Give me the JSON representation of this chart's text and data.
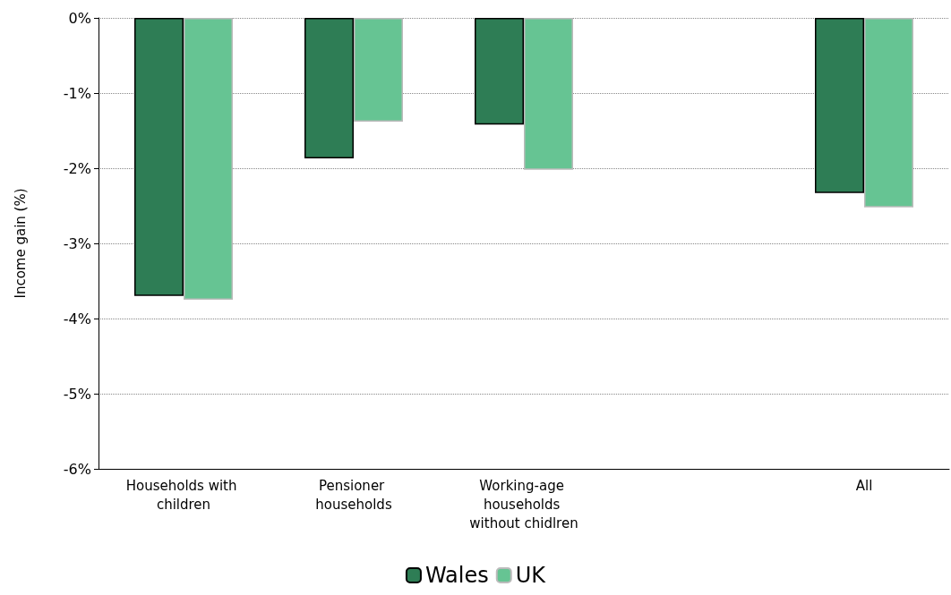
{
  "chart_data": {
    "type": "bar",
    "ylabel": "Income gain (%)",
    "categories": [
      "Households with children",
      "Pensioner households",
      "Working-age households without chidlren",
      null,
      "All"
    ],
    "series": [
      {
        "name": "Wales",
        "color": "#2e7d55",
        "values": [
          -3.7,
          -1.87,
          -1.42,
          null,
          -2.33
        ]
      },
      {
        "name": "UK",
        "color": "#66c493",
        "values": [
          -3.75,
          -1.38,
          -2.02,
          null,
          -2.52
        ]
      }
    ],
    "ylim": [
      -6,
      0
    ],
    "yticks": [
      {
        "value": -6,
        "label": "-6%"
      },
      {
        "value": -5,
        "label": "-5%"
      },
      {
        "value": -4,
        "label": "-4%"
      },
      {
        "value": -3,
        "label": "-3%"
      },
      {
        "value": -2,
        "label": "-2%"
      },
      {
        "value": -1,
        "label": "-1%"
      },
      {
        "value": 0,
        "label": "0%"
      }
    ],
    "grid": "y",
    "legend": "bottom"
  }
}
